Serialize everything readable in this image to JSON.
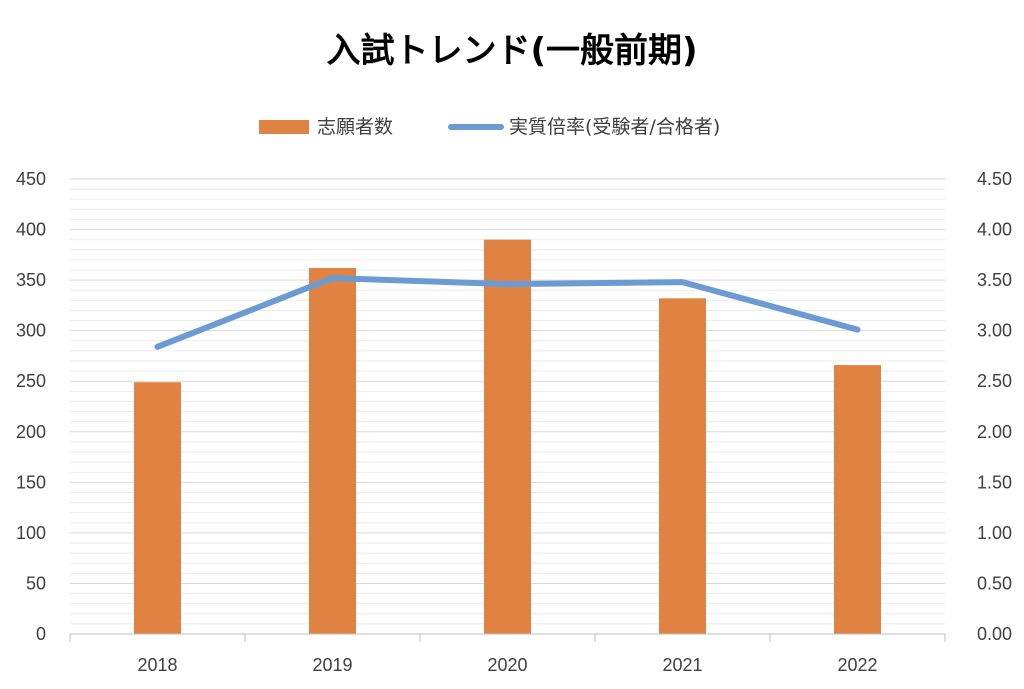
{
  "chart_data": {
    "type": "bar",
    "title": "入試トレンド(一般前期)",
    "categories": [
      "2018",
      "2019",
      "2020",
      "2021",
      "2022"
    ],
    "series": [
      {
        "name": "志願者数",
        "type": "bar",
        "axis": "left",
        "color": "#E08242",
        "values": [
          249,
          362,
          390,
          332,
          266
        ]
      },
      {
        "name": "実質倍率(受験者/合格者)",
        "type": "line",
        "axis": "right",
        "color": "#6B9BD2",
        "values": [
          2.84,
          3.52,
          3.46,
          3.48,
          3.01
        ]
      }
    ],
    "y_left": {
      "ylim": [
        0,
        450
      ],
      "ticks": [
        "0",
        "50",
        "100",
        "150",
        "200",
        "250",
        "300",
        "350",
        "400",
        "450"
      ]
    },
    "y_right": {
      "ylim": [
        0,
        4.5
      ],
      "ticks": [
        "0.00",
        "0.50",
        "1.00",
        "1.50",
        "2.00",
        "2.50",
        "3.00",
        "3.50",
        "4.00",
        "4.50"
      ]
    },
    "grid": true,
    "legend_position": "top"
  }
}
